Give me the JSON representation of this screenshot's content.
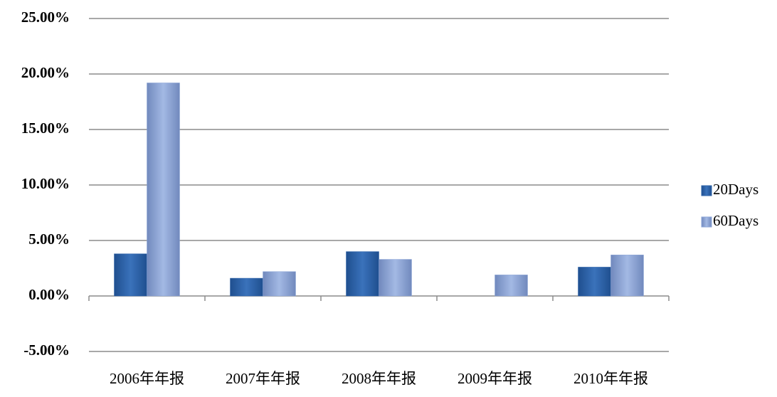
{
  "chart_data": {
    "type": "bar",
    "categories": [
      "2006年年报",
      "2007年年报",
      "2008年年报",
      "2009年年报",
      "2010年年报"
    ],
    "series": [
      {
        "name": "20Days",
        "color": "#2f64aa",
        "values": [
          3.8,
          1.6,
          4.0,
          0,
          2.6
        ]
      },
      {
        "name": "60Days",
        "color": "#8ea7d8",
        "values": [
          19.2,
          2.2,
          3.3,
          1.9,
          3.7
        ]
      }
    ],
    "ylim": [
      -5,
      25
    ],
    "yticks": [
      {
        "value": -5,
        "label": "-5.00%"
      },
      {
        "value": 0,
        "label": "0.00%"
      },
      {
        "value": 5,
        "label": "5.00%"
      },
      {
        "value": 10,
        "label": "10.00%"
      },
      {
        "value": 15,
        "label": "15.00%"
      },
      {
        "value": 20,
        "label": "20.00%"
      },
      {
        "value": 25,
        "label": "25.00%"
      }
    ],
    "grid": true,
    "legend": "right"
  }
}
